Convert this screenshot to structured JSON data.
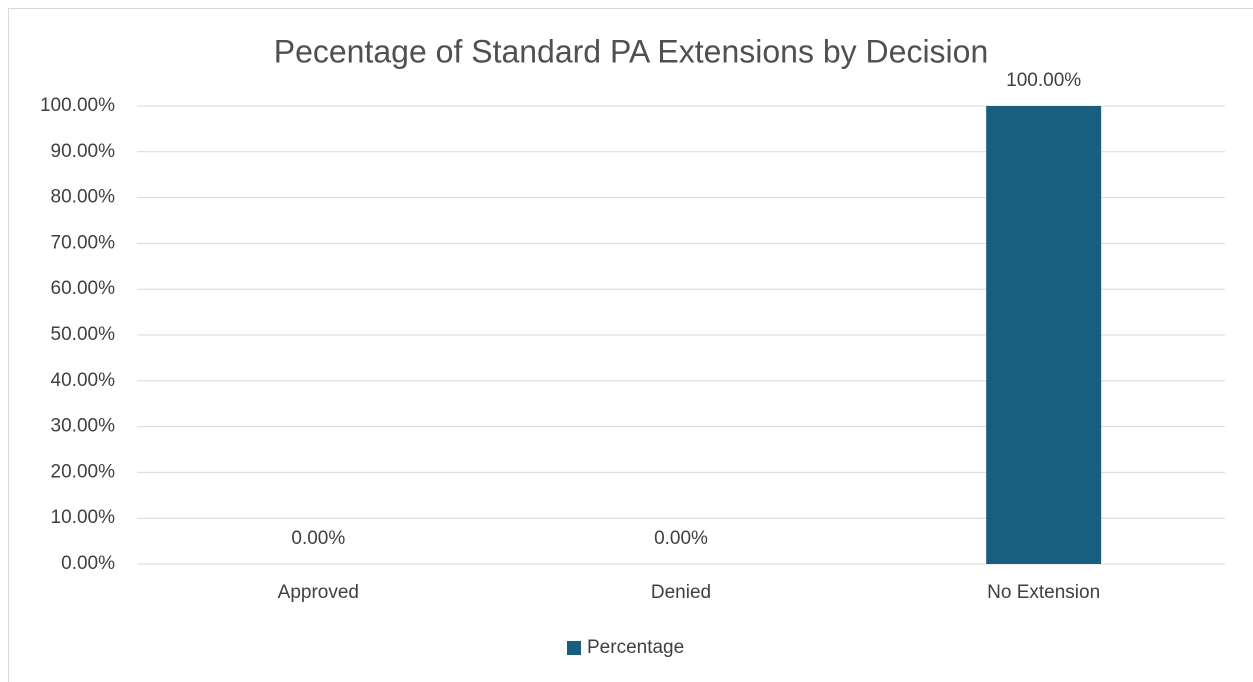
{
  "chart_data": {
    "type": "bar",
    "title": "Pecentage of Standard PA Extensions by Decision",
    "categories": [
      "Approved",
      "Denied",
      "No Extension"
    ],
    "series": [
      {
        "name": "Percentage",
        "color": "#175e7f",
        "values": [
          0,
          0,
          100
        ],
        "value_labels": [
          "0.00%",
          "0.00%",
          "100.00%"
        ]
      }
    ],
    "ylim": [
      0,
      100
    ],
    "yticks": [
      {
        "value": 0,
        "label": "0.00%"
      },
      {
        "value": 10,
        "label": "10.00%"
      },
      {
        "value": 20,
        "label": "20.00%"
      },
      {
        "value": 30,
        "label": "30.00%"
      },
      {
        "value": 40,
        "label": "40.00%"
      },
      {
        "value": 50,
        "label": "50.00%"
      },
      {
        "value": 60,
        "label": "60.00%"
      },
      {
        "value": 70,
        "label": "70.00%"
      },
      {
        "value": 80,
        "label": "80.00%"
      },
      {
        "value": 90,
        "label": "90.00%"
      },
      {
        "value": 100,
        "label": "100.00%"
      }
    ],
    "grid": true,
    "legend": "bottom"
  }
}
